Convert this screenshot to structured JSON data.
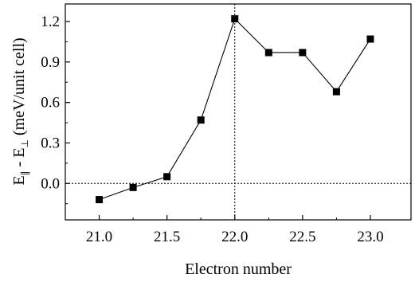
{
  "chart_data": {
    "type": "line",
    "title": "",
    "xlabel": "Electron number",
    "ylabel": {
      "e1": "E",
      "sub1": "∥",
      "mid": " - E",
      "sub2": "⊥",
      "tail": " (meV/unit cell)"
    },
    "xlim": [
      20.75,
      23.3
    ],
    "ylim": [
      -0.27,
      1.33
    ],
    "x_ticks": [
      21.0,
      21.5,
      22.0,
      22.5,
      23.0
    ],
    "x_tick_labels": [
      "21.0",
      "21.5",
      "22.0",
      "22.5",
      "23.0"
    ],
    "y_ticks": [
      0.0,
      0.3,
      0.6,
      0.9,
      1.2
    ],
    "y_tick_labels": [
      "0.0",
      "0.3",
      "0.6",
      "0.9",
      "1.2"
    ],
    "series": [
      {
        "x": [
          21.0,
          21.25,
          21.5,
          21.75,
          22.0,
          22.25,
          22.5,
          22.75,
          23.0
        ],
        "y": [
          -0.12,
          -0.03,
          0.05,
          0.47,
          1.22,
          0.97,
          0.97,
          0.68,
          1.07
        ],
        "marker": "square",
        "color": "#000000"
      }
    ],
    "reference_lines": {
      "horizontal_y": 0.0,
      "vertical_x": 22.0,
      "style": "dotted"
    },
    "grid": false,
    "legend": "none"
  }
}
